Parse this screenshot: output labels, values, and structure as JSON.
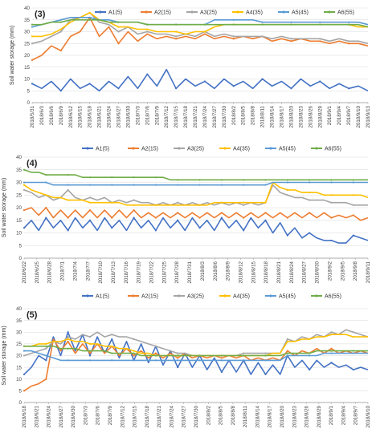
{
  "colors": {
    "A1": "#4472C4",
    "A2": "#ED7D31",
    "A3": "#A5A5A5",
    "A4": "#FFC000",
    "A5": "#5B9BD5",
    "A6": "#70AD47",
    "grid": "#d9d9d9"
  },
  "legend_labels": [
    "A1(5)",
    "A2(15)",
    "A3(25)",
    "A4(35)",
    "A5(45)",
    "A6(55)"
  ],
  "chart_data": [
    {
      "type": "line",
      "panel_label": "(3)",
      "ylabel": "Soil water storage (mm)",
      "xlabel": "",
      "ylim": [
        0,
        40
      ],
      "yticks": [
        0,
        5,
        10,
        15,
        20,
        25,
        30,
        35,
        40
      ],
      "grid": true,
      "legend": "top",
      "x_tick_labels": [
        "2018/5/31",
        "2018/6/3",
        "2018/6/6",
        "2018/6/9",
        "2018/6/12",
        "2018/6/15",
        "2018/6/18",
        "2018/6/21",
        "2018/6/24",
        "2018/6/27",
        "2018/6/30",
        "2018/7/3",
        "2018/7/6",
        "2018/7/9",
        "2018/7/12",
        "2018/7/15",
        "2018/7/18",
        "2018/7/21",
        "2018/7/24",
        "2018/7/27",
        "2018/7/30",
        "2018/8/2",
        "2018/8/5",
        "2018/8/8",
        "2018/8/11",
        "2018/8/14",
        "2018/8/17",
        "2018/8/20",
        "2018/8/23",
        "2018/8/26",
        "2018/8/29",
        "2018/9/1",
        "2018/9/4",
        "2018/9/7",
        "2018/9/10",
        "2018/9/13"
      ],
      "series": [
        {
          "name": "A1(5)",
          "key": "A1",
          "values": [
            8,
            6,
            9,
            5,
            10,
            6,
            8,
            5,
            9,
            6,
            11,
            6,
            12,
            7,
            14,
            6,
            10,
            7,
            9,
            6,
            10,
            7,
            9,
            6,
            10,
            7,
            9,
            6,
            10,
            7,
            9,
            6,
            8,
            6,
            7,
            5
          ]
        },
        {
          "name": "A2(15)",
          "key": "A2",
          "values": [
            18,
            20,
            24,
            22,
            28,
            30,
            36,
            28,
            32,
            25,
            30,
            26,
            29,
            27,
            28,
            27,
            28,
            27,
            29,
            27,
            28,
            27,
            28,
            27,
            28,
            26,
            27,
            26,
            27,
            26,
            26,
            25,
            26,
            25,
            25,
            24
          ]
        },
        {
          "name": "A3(25)",
          "key": "A3",
          "values": [
            25,
            26,
            28,
            30,
            35,
            36,
            38,
            34,
            33,
            30,
            32,
            29,
            30,
            29,
            29,
            28,
            29,
            28,
            30,
            28,
            29,
            28,
            28,
            28,
            28,
            27,
            28,
            27,
            27,
            27,
            27,
            26,
            27,
            26,
            26,
            25
          ]
        },
        {
          "name": "A4(35)",
          "key": "A4",
          "values": [
            28,
            28,
            29,
            31,
            34,
            36,
            38,
            35,
            34,
            32,
            32,
            31,
            31,
            30,
            30,
            30,
            29,
            30,
            30,
            32,
            33,
            33,
            33,
            33,
            33,
            33,
            33,
            33,
            33,
            33,
            33,
            33,
            33,
            33,
            32,
            32
          ]
        },
        {
          "name": "A5(45)",
          "key": "A5",
          "values": [
            32,
            33,
            34,
            35,
            36,
            36,
            36,
            35,
            35,
            34,
            34,
            34,
            33,
            33,
            33,
            33,
            33,
            33,
            33,
            35,
            35,
            35,
            35,
            35,
            34,
            34,
            34,
            34,
            34,
            34,
            34,
            34,
            34,
            34,
            34,
            33
          ]
        },
        {
          "name": "A6(55)",
          "key": "A6",
          "values": [
            33,
            33,
            34,
            34,
            35,
            35,
            35,
            35,
            34,
            34,
            34,
            34,
            33,
            33,
            33,
            33,
            33,
            33,
            33,
            33,
            33,
            33,
            33,
            33,
            33,
            33,
            33,
            33,
            33,
            33,
            33,
            33,
            33,
            33,
            33,
            32
          ]
        }
      ]
    },
    {
      "type": "line",
      "panel_label": "(4)",
      "ylabel": "Soil water storage (mm)",
      "xlabel": "",
      "ylim": [
        0,
        40
      ],
      "yticks": [
        0,
        5,
        10,
        15,
        20,
        25,
        30,
        35,
        40
      ],
      "grid": true,
      "legend": "top",
      "x_tick_labels": [
        "2018/6/22",
        "2018/6/25",
        "2018/6/28",
        "2018/7/1",
        "2018/7/4",
        "2018/7/7",
        "2018/7/10",
        "2018/7/13",
        "2018/7/16",
        "2018/7/19",
        "2018/7/22",
        "2018/7/25",
        "2018/7/28",
        "2018/7/31",
        "2018/8/3",
        "2018/8/6",
        "2018/8/9",
        "2018/8/12",
        "2018/8/15",
        "2018/8/18",
        "2018/8/21",
        "2018/8/24",
        "2018/8/27",
        "2018/8/30",
        "2018/9/2",
        "2018/9/5",
        "2018/9/8",
        "2018/9/11"
      ],
      "series": [
        {
          "name": "A1(5)",
          "key": "A1",
          "values": [
            12,
            15,
            11,
            16,
            12,
            15,
            11,
            16,
            12,
            15,
            11,
            16,
            12,
            15,
            11,
            16,
            12,
            15,
            11,
            16,
            12,
            15,
            11,
            16,
            12,
            15,
            11,
            16,
            12,
            15,
            11,
            16,
            12,
            15,
            10,
            14,
            9,
            12,
            8,
            10,
            8,
            7,
            7,
            6,
            6,
            9,
            8,
            7
          ]
        },
        {
          "name": "A2(15)",
          "key": "A2",
          "values": [
            19,
            20,
            17,
            20,
            16,
            19,
            16,
            19,
            16,
            19,
            16,
            19,
            16,
            19,
            16,
            19,
            16,
            18,
            16,
            18,
            16,
            18,
            16,
            18,
            16,
            18,
            16,
            18,
            16,
            18,
            16,
            18,
            16,
            18,
            16,
            18,
            16,
            18,
            16,
            18,
            16,
            18,
            16,
            17,
            16,
            17,
            15,
            16
          ]
        },
        {
          "name": "A3(25)",
          "key": "A3",
          "values": [
            27,
            26,
            24,
            25,
            23,
            24,
            27,
            24,
            23,
            24,
            23,
            24,
            22,
            23,
            22,
            23,
            22,
            22,
            21,
            22,
            21,
            22,
            21,
            22,
            21,
            22,
            21,
            22,
            21,
            22,
            21,
            22,
            21,
            22,
            29,
            26,
            25,
            24,
            24,
            23,
            23,
            23,
            22,
            22,
            22,
            21,
            21,
            21
          ]
        },
        {
          "name": "A4(35)",
          "key": "A4",
          "values": [
            29,
            27,
            26,
            25,
            24,
            24,
            23,
            23,
            23,
            22,
            22,
            22,
            22,
            22,
            21,
            21,
            21,
            21,
            21,
            21,
            21,
            21,
            21,
            21,
            21,
            21,
            22,
            22,
            22,
            22,
            22,
            22,
            22,
            22,
            30,
            28,
            27,
            27,
            26,
            26,
            26,
            25,
            25,
            25,
            25,
            25,
            25,
            24
          ]
        },
        {
          "name": "A5(45)",
          "key": "A5",
          "values": [
            30,
            30,
            30,
            30,
            29,
            29,
            29,
            29,
            29,
            29,
            29,
            29,
            29,
            29,
            29,
            29,
            29,
            29,
            29,
            29,
            29,
            29,
            29,
            29,
            29,
            29,
            29,
            29,
            29,
            29,
            29,
            29,
            29,
            29,
            30,
            30,
            30,
            30,
            30,
            30,
            30,
            30,
            30,
            30,
            30,
            30,
            30,
            30
          ]
        },
        {
          "name": "A6(55)",
          "key": "A6",
          "values": [
            35,
            34,
            34,
            33,
            33,
            33,
            33,
            33,
            32,
            32,
            32,
            32,
            32,
            32,
            32,
            32,
            32,
            32,
            32,
            32,
            31,
            31,
            31,
            31,
            31,
            31,
            31,
            31,
            31,
            31,
            31,
            31,
            31,
            31,
            31,
            31,
            31,
            31,
            31,
            31,
            31,
            31,
            31,
            31,
            31,
            31,
            31,
            31
          ]
        }
      ]
    },
    {
      "type": "line",
      "panel_label": "(5)",
      "ylabel": "Soil water storage (mm)",
      "xlabel": "",
      "ylim": [
        0,
        40
      ],
      "yticks": [
        0,
        5,
        10,
        15,
        20,
        25,
        30,
        35,
        40
      ],
      "grid": true,
      "legend": "top",
      "x_tick_labels": [
        "2018/6/18",
        "2018/6/21",
        "2018/6/24",
        "2018/6/27",
        "2018/6/30",
        "2018/7/3",
        "2018/7/6",
        "2018/7/9",
        "2018/7/12",
        "2018/7/15",
        "2018/7/18",
        "2018/7/21",
        "2018/7/24",
        "2018/7/27",
        "2018/7/30",
        "2018/8/2",
        "2018/8/5",
        "2018/8/8",
        "2018/8/11",
        "2018/8/14",
        "2018/8/17",
        "2018/8/20",
        "2018/8/23",
        "2018/8/26",
        "2018/8/29",
        "2018/9/1",
        "2018/9/4",
        "2018/9/7",
        "2018/9/10"
      ],
      "series": [
        {
          "name": "A1(5)",
          "key": "A1",
          "values": [
            12,
            15,
            20,
            18,
            28,
            20,
            30,
            22,
            29,
            20,
            28,
            21,
            27,
            19,
            26,
            18,
            25,
            17,
            24,
            16,
            22,
            15,
            21,
            15,
            20,
            14,
            19,
            13,
            18,
            13,
            18,
            12,
            17,
            12,
            16,
            12,
            20,
            15,
            18,
            14,
            18,
            15,
            17,
            15,
            16,
            14,
            15,
            14
          ]
        },
        {
          "name": "A2(15)",
          "key": "A2",
          "values": [
            5,
            7,
            8,
            10,
            27,
            22,
            26,
            21,
            25,
            21,
            25,
            21,
            24,
            20,
            23,
            20,
            22,
            19,
            21,
            19,
            21,
            19,
            21,
            19,
            20,
            19,
            20,
            19,
            20,
            19,
            20,
            18,
            19,
            18,
            19,
            18,
            22,
            20,
            22,
            21,
            23,
            21,
            23,
            21,
            22,
            21,
            22,
            21
          ]
        },
        {
          "name": "A3(25)",
          "key": "A3",
          "values": [
            20,
            21,
            22,
            23,
            26,
            25,
            28,
            27,
            29,
            28,
            30,
            28,
            29,
            28,
            28,
            27,
            26,
            25,
            24,
            23,
            22,
            21,
            21,
            20,
            20,
            20,
            20,
            20,
            20,
            20,
            21,
            21,
            21,
            21,
            21,
            21,
            27,
            26,
            28,
            27,
            29,
            28,
            30,
            29,
            31,
            30,
            29,
            28
          ]
        },
        {
          "name": "A4(35)",
          "key": "A4",
          "values": [
            24,
            24,
            25,
            25,
            26,
            26,
            27,
            26,
            26,
            25,
            25,
            24,
            24,
            23,
            23,
            22,
            21,
            21,
            20,
            20,
            20,
            20,
            20,
            20,
            20,
            20,
            20,
            20,
            20,
            20,
            20,
            20,
            20,
            20,
            21,
            21,
            26,
            26,
            27,
            27,
            28,
            28,
            29,
            29,
            29,
            28,
            28,
            28
          ]
        },
        {
          "name": "A5(45)",
          "key": "A5",
          "values": [
            22,
            22,
            21,
            20,
            19,
            18,
            18,
            18,
            18,
            18,
            18,
            18,
            18,
            18,
            18,
            18,
            18,
            18,
            18,
            18,
            18,
            18,
            18,
            18,
            18,
            18,
            18,
            18,
            18,
            18,
            18,
            18,
            18,
            18,
            18,
            18,
            20,
            20,
            20,
            20,
            20,
            21,
            21,
            21,
            21,
            21,
            21,
            21
          ]
        },
        {
          "name": "A6(55)",
          "key": "A6",
          "values": [
            24,
            24,
            24,
            24,
            24,
            23,
            23,
            23,
            22,
            22,
            22,
            22,
            21,
            21,
            21,
            21,
            20,
            20,
            20,
            20,
            20,
            20,
            20,
            20,
            20,
            20,
            20,
            20,
            20,
            20,
            20,
            20,
            20,
            20,
            20,
            20,
            21,
            21,
            21,
            21,
            22,
            22,
            22,
            22,
            22,
            22,
            22,
            22
          ]
        }
      ]
    }
  ]
}
